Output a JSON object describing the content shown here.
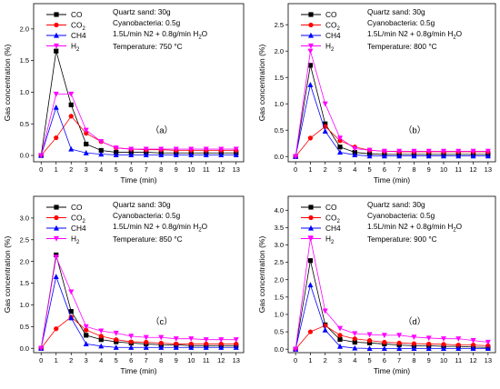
{
  "chart_data": [
    {
      "type": "line",
      "panel_label": "（a）",
      "x": [
        0,
        1,
        2,
        3,
        4,
        5,
        6,
        7,
        8,
        9,
        10,
        11,
        12,
        13
      ],
      "xlabel": "Time (min)",
      "ylabel": "Gas concentration (%)",
      "xlim": [
        -0.5,
        13.5
      ],
      "ylim": [
        -0.1,
        2.4
      ],
      "xticks": [
        "0",
        "1",
        "2",
        "3",
        "4",
        "5",
        "6",
        "7",
        "8",
        "9",
        "10",
        "11",
        "12",
        "13"
      ],
      "yticks": [
        "0.0",
        "0.5",
        "1.0",
        "1.5",
        "2.0"
      ],
      "info": [
        "Quartz sand: 30g",
        "Cyanobacteria: 0.5g",
        "1.5L/min N2 + 0.8g/min H",
        "O",
        "Temperature: 750 °C"
      ],
      "legend_position": "top-left",
      "series": [
        {
          "name": "CO",
          "name_sub": "",
          "color": "#000000",
          "marker": "square",
          "values": [
            0.0,
            1.65,
            0.8,
            0.18,
            0.08,
            0.05,
            0.05,
            0.05,
            0.04,
            0.04,
            0.04,
            0.04,
            0.04,
            0.04
          ]
        },
        {
          "name": "CO",
          "name_sub": "2",
          "color": "#ff0000",
          "marker": "circle",
          "values": [
            0.0,
            0.28,
            0.62,
            0.35,
            0.22,
            0.12,
            0.1,
            0.09,
            0.09,
            0.08,
            0.08,
            0.08,
            0.08,
            0.08
          ]
        },
        {
          "name": "CH4",
          "name_sub": "",
          "color": "#0000ff",
          "marker": "triangle-up",
          "values": [
            0.0,
            0.76,
            0.1,
            0.04,
            0.02,
            0.01,
            0.01,
            0.01,
            0.01,
            0.01,
            0.01,
            0.01,
            0.01,
            0.01
          ]
        },
        {
          "name": "H",
          "name_sub": "2",
          "color": "#ff00ff",
          "marker": "triangle-down",
          "values": [
            0.0,
            0.97,
            0.97,
            0.4,
            0.22,
            0.12,
            0.1,
            0.1,
            0.1,
            0.1,
            0.1,
            0.1,
            0.1,
            0.1
          ]
        }
      ]
    },
    {
      "type": "line",
      "panel_label": "（b）",
      "x": [
        0,
        1,
        2,
        3,
        4,
        5,
        6,
        7,
        8,
        9,
        10,
        11,
        12,
        13
      ],
      "xlabel": "Time (min)",
      "ylabel": "Gas concentration (%)",
      "xlim": [
        -0.5,
        13.5
      ],
      "ylim": [
        -0.1,
        2.9
      ],
      "xticks": [
        "0",
        "1",
        "2",
        "3",
        "4",
        "5",
        "6",
        "7",
        "8",
        "9",
        "10",
        "11",
        "12",
        "13"
      ],
      "yticks": [
        "0.0",
        "0.5",
        "1.0",
        "1.5",
        "2.0",
        "2.5"
      ],
      "info": [
        "Quartz sand: 30g",
        "Cyanobacteria: 0.5g",
        "1.5L/min N2 + 0.8g/min H",
        "O",
        "Temperature: 800 °C"
      ],
      "legend_position": "top-left",
      "series": [
        {
          "name": "CO",
          "name_sub": "",
          "color": "#000000",
          "marker": "square",
          "values": [
            0.0,
            1.73,
            0.62,
            0.18,
            0.08,
            0.05,
            0.04,
            0.04,
            0.04,
            0.04,
            0.04,
            0.04,
            0.04,
            0.04
          ]
        },
        {
          "name": "CO",
          "name_sub": "2",
          "color": "#ff0000",
          "marker": "circle",
          "values": [
            0.0,
            0.35,
            0.57,
            0.3,
            0.18,
            0.12,
            0.1,
            0.09,
            0.09,
            0.09,
            0.09,
            0.09,
            0.09,
            0.09
          ]
        },
        {
          "name": "CH4",
          "name_sub": "",
          "color": "#0000ff",
          "marker": "triangle-up",
          "values": [
            0.0,
            1.36,
            0.48,
            0.08,
            0.03,
            0.01,
            0.01,
            0.01,
            0.01,
            0.01,
            0.01,
            0.01,
            0.01,
            0.01
          ]
        },
        {
          "name": "H",
          "name_sub": "2",
          "color": "#ff00ff",
          "marker": "triangle-down",
          "values": [
            0.0,
            2.0,
            1.0,
            0.35,
            0.15,
            0.12,
            0.1,
            0.1,
            0.1,
            0.1,
            0.1,
            0.1,
            0.1,
            0.1
          ]
        }
      ]
    },
    {
      "type": "line",
      "panel_label": "（c）",
      "x": [
        0,
        1,
        2,
        3,
        4,
        5,
        6,
        7,
        8,
        9,
        10,
        11,
        12,
        13
      ],
      "xlabel": "Time (min)",
      "ylabel": "Gas concentration (%)",
      "xlim": [
        -0.5,
        13.5
      ],
      "ylim": [
        -0.1,
        3.5
      ],
      "xticks": [
        "0",
        "1",
        "2",
        "3",
        "4",
        "5",
        "6",
        "7",
        "8",
        "9",
        "10",
        "11",
        "12",
        "13"
      ],
      "yticks": [
        "0.0",
        "0.5",
        "1.0",
        "1.5",
        "2.0",
        "2.5",
        "3.0"
      ],
      "info": [
        "Quartz sand: 30g",
        "Cyanobacteria: 0.5g",
        "1.5L/min N2 + 0.8g/min H",
        "O",
        "Temperature: 850 °C"
      ],
      "legend_position": "top-left",
      "series": [
        {
          "name": "CO",
          "name_sub": "",
          "color": "#000000",
          "marker": "square",
          "values": [
            0.0,
            2.15,
            0.85,
            0.3,
            0.2,
            0.15,
            0.12,
            0.1,
            0.08,
            0.08,
            0.06,
            0.06,
            0.06,
            0.06
          ]
        },
        {
          "name": "CO",
          "name_sub": "2",
          "color": "#ff0000",
          "marker": "circle",
          "values": [
            0.0,
            0.45,
            0.72,
            0.42,
            0.28,
            0.2,
            0.15,
            0.14,
            0.12,
            0.1,
            0.1,
            0.1,
            0.1,
            0.1
          ]
        },
        {
          "name": "CH4",
          "name_sub": "",
          "color": "#0000ff",
          "marker": "triangle-up",
          "values": [
            0.0,
            1.65,
            0.7,
            0.1,
            0.05,
            0.02,
            0.02,
            0.02,
            0.02,
            0.02,
            0.02,
            0.02,
            0.02,
            0.02
          ]
        },
        {
          "name": "H",
          "name_sub": "2",
          "color": "#ff00ff",
          "marker": "triangle-down",
          "values": [
            0.0,
            2.1,
            1.3,
            0.5,
            0.4,
            0.35,
            0.28,
            0.25,
            0.25,
            0.22,
            0.22,
            0.2,
            0.2,
            0.2
          ]
        }
      ]
    },
    {
      "type": "line",
      "panel_label": "（d）",
      "x": [
        0,
        1,
        2,
        3,
        4,
        5,
        6,
        7,
        8,
        9,
        10,
        11,
        12,
        13
      ],
      "xlabel": "Time (min)",
      "ylabel": "Gas concentration (%)",
      "xlim": [
        -0.5,
        13.5
      ],
      "ylim": [
        -0.1,
        4.4
      ],
      "xticks": [
        "0",
        "1",
        "2",
        "3",
        "4",
        "5",
        "6",
        "7",
        "8",
        "9",
        "10",
        "11",
        "12",
        "13"
      ],
      "yticks": [
        "0.0",
        "0.5",
        "1.0",
        "1.5",
        "2.0",
        "2.5",
        "3.0",
        "3.5",
        "4.0"
      ],
      "info": [
        "Quartz sand: 30g",
        "Cyanobacteria: 0.5g",
        "1.5L/min N2 + 0.8g/min H",
        "O",
        "Temperature: 900 °C"
      ],
      "legend_position": "top-left",
      "series": [
        {
          "name": "CO",
          "name_sub": "",
          "color": "#000000",
          "marker": "square",
          "values": [
            0.0,
            2.55,
            0.7,
            0.28,
            0.2,
            0.18,
            0.15,
            0.12,
            0.1,
            0.1,
            0.08,
            0.08,
            0.06,
            0.05
          ]
        },
        {
          "name": "CO",
          "name_sub": "2",
          "color": "#ff0000",
          "marker": "circle",
          "values": [
            0.0,
            0.5,
            0.68,
            0.4,
            0.3,
            0.25,
            0.2,
            0.18,
            0.16,
            0.15,
            0.14,
            0.12,
            0.12,
            0.1
          ]
        },
        {
          "name": "CH4",
          "name_sub": "",
          "color": "#0000ff",
          "marker": "triangle-up",
          "values": [
            0.0,
            1.85,
            0.55,
            0.08,
            0.03,
            0.02,
            0.02,
            0.02,
            0.02,
            0.02,
            0.02,
            0.02,
            0.02,
            0.02
          ]
        },
        {
          "name": "H",
          "name_sub": "2",
          "color": "#ff00ff",
          "marker": "triangle-down",
          "values": [
            0.0,
            3.2,
            1.1,
            0.6,
            0.45,
            0.42,
            0.4,
            0.4,
            0.35,
            0.32,
            0.3,
            0.3,
            0.25,
            0.2
          ]
        }
      ]
    }
  ]
}
